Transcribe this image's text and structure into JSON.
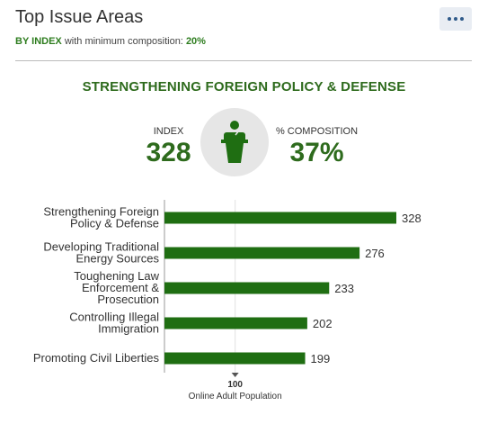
{
  "header": {
    "title": "Top Issue Areas",
    "menu_icon": "more-horizontal-icon",
    "subtitle_prefix": "BY INDEX",
    "subtitle_text": "with minimum composition:",
    "subtitle_value": "20%"
  },
  "focus": {
    "title": "STRENGTHENING FOREIGN POLICY & DEFENSE",
    "index_label": "INDEX",
    "index_value": "328",
    "composition_label": "% COMPOSITION",
    "composition_value": "37%",
    "icon": "podium-speaker-icon"
  },
  "colors": {
    "bar": "#1f6e12",
    "accent": "#2e6b1d",
    "menu_button": "#e9edf3"
  },
  "chart_data": {
    "type": "bar",
    "orientation": "horizontal",
    "categories": [
      [
        "Strengthening Foreign",
        "Policy & Defense"
      ],
      [
        "Developing Traditional",
        "Energy Sources"
      ],
      [
        "Toughening Law",
        "Enforcement &",
        "Prosecution"
      ],
      [
        "Controlling Illegal",
        "Immigration"
      ],
      [
        "Promoting Civil Liberties"
      ]
    ],
    "values": [
      328,
      276,
      233,
      202,
      199
    ],
    "baseline": 100,
    "baseline_value_label": "100",
    "baseline_label": "Online Adult Population",
    "xlim": [
      0,
      350
    ]
  }
}
